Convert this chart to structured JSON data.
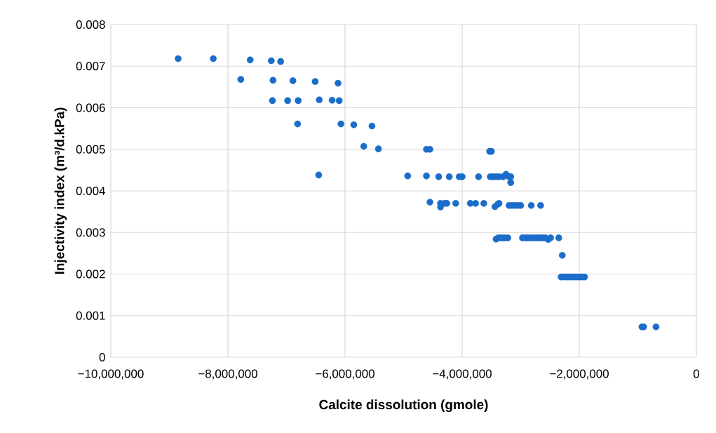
{
  "chart_data": {
    "type": "scatter",
    "xlabel": "Calcite dissolution (gmole)",
    "ylabel": "Injectivity index (m³/d.kPa)",
    "x": [
      -8850000,
      -8250000,
      -7620000,
      -7260000,
      -7100000,
      -7780000,
      -7230000,
      -6890000,
      -6510000,
      -6120000,
      -7240000,
      -6980000,
      -6800000,
      -6440000,
      -6220000,
      -6100000,
      -6810000,
      -6070000,
      -5850000,
      -5540000,
      -5680000,
      -5430000,
      -4610000,
      -4550000,
      -3530000,
      -3500000,
      -6450000,
      -4930000,
      -4610000,
      -4400000,
      -4220000,
      -4050000,
      -4000000,
      -3720000,
      -3520000,
      -3470000,
      -3420000,
      -3370000,
      -3300000,
      -3250000,
      -3200000,
      -3170000,
      -3170000,
      -4550000,
      -4370000,
      -4370000,
      -4300000,
      -4260000,
      -4110000,
      -3860000,
      -3770000,
      -3630000,
      -3440000,
      -3390000,
      -3370000,
      -3200000,
      -3150000,
      -3100000,
      -3050000,
      -3000000,
      -2820000,
      -2660000,
      -3420000,
      -3380000,
      -3330000,
      -3280000,
      -3220000,
      -2970000,
      -2920000,
      -2880000,
      -2830000,
      -2780000,
      -2730000,
      -2680000,
      -2630000,
      -2580000,
      -2530000,
      -2490000,
      -2350000,
      -2290000,
      -2310000,
      -2250000,
      -2200000,
      -2150000,
      -2100000,
      -2050000,
      -2000000,
      -1950000,
      -1910000,
      -930000,
      -900000,
      -690000
    ],
    "values": [
      0.00718,
      0.00718,
      0.00715,
      0.00713,
      0.00711,
      0.00668,
      0.00666,
      0.00665,
      0.00663,
      0.00659,
      0.00617,
      0.00617,
      0.00617,
      0.00619,
      0.00618,
      0.00617,
      0.00561,
      0.00561,
      0.00559,
      0.00556,
      0.00507,
      0.00501,
      0.005,
      0.005,
      0.00495,
      0.00495,
      0.00438,
      0.00436,
      0.00436,
      0.00434,
      0.00434,
      0.00434,
      0.00434,
      0.00434,
      0.00434,
      0.00434,
      0.00434,
      0.00434,
      0.00434,
      0.0044,
      0.00434,
      0.00434,
      0.0042,
      0.00373,
      0.0037,
      0.00361,
      0.0037,
      0.0037,
      0.0037,
      0.0037,
      0.0037,
      0.0037,
      0.00362,
      0.00368,
      0.0037,
      0.00365,
      0.00365,
      0.00365,
      0.00365,
      0.00365,
      0.00365,
      0.00365,
      0.00284,
      0.00287,
      0.00287,
      0.00287,
      0.00287,
      0.00287,
      0.00287,
      0.00287,
      0.00287,
      0.00287,
      0.00287,
      0.00287,
      0.00287,
      0.00287,
      0.00283,
      0.00287,
      0.00287,
      0.00245,
      0.00193,
      0.00193,
      0.00193,
      0.00193,
      0.00193,
      0.00193,
      0.00193,
      0.00193,
      0.00193,
      0.00073,
      0.00073,
      0.00073
    ],
    "color": "#1a6dc8",
    "marker": "circle",
    "grid": true,
    "xlim": [
      -10000000,
      0
    ],
    "xticks": [
      {
        "value": -10000000,
        "label": "−10,000,000"
      },
      {
        "value": -8000000,
        "label": "−8,000,000"
      },
      {
        "value": -6000000,
        "label": "−6,000,000"
      },
      {
        "value": -4000000,
        "label": "−4,000,000"
      },
      {
        "value": -2000000,
        "label": "−2,000,000"
      },
      0
    ],
    "ylim": [
      0,
      0.008
    ],
    "yticks": [
      0,
      0.001,
      0.002,
      0.003,
      0.004,
      0.005,
      0.006,
      0.007,
      0.008
    ]
  }
}
